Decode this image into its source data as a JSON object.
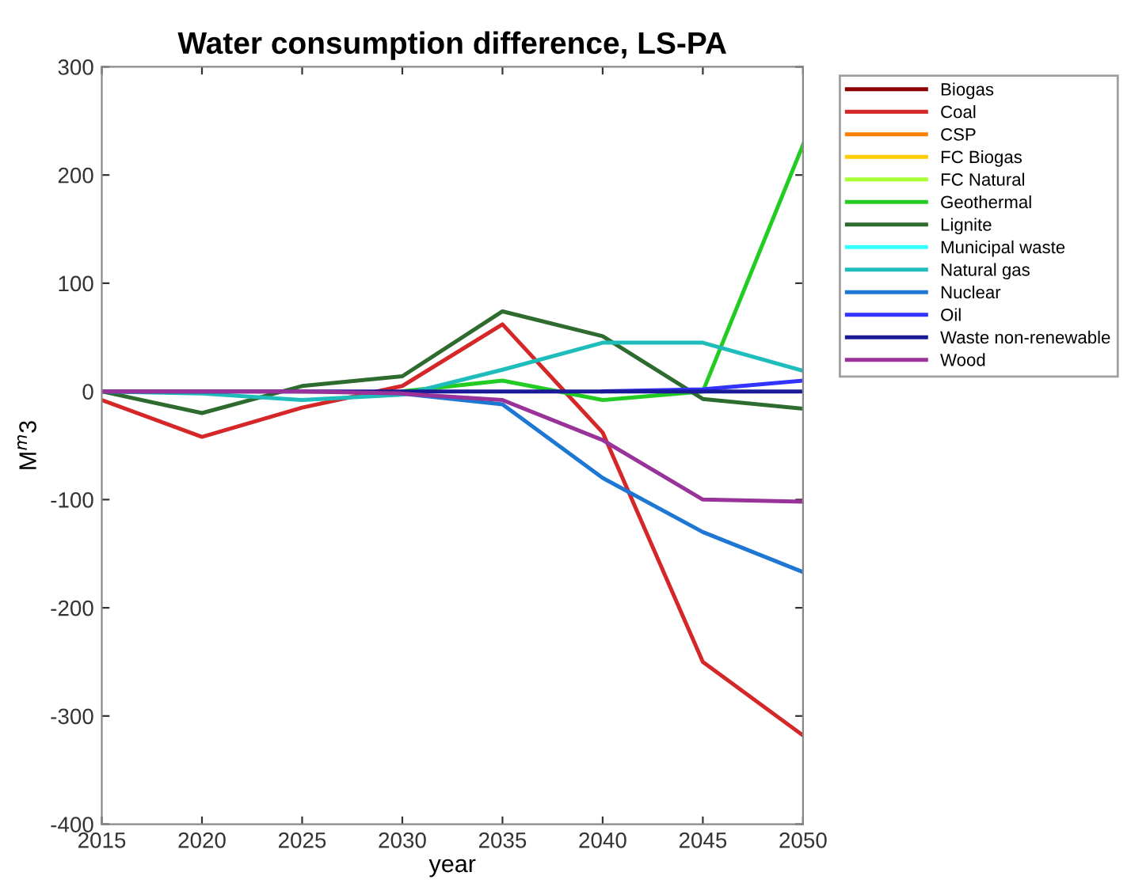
{
  "chart_data": {
    "type": "line",
    "title": "Water consumption difference, LS-PA",
    "xlabel": "year",
    "ylabel": "M$^{m}$3",
    "x": [
      2015,
      2020,
      2025,
      2030,
      2035,
      2040,
      2045,
      2050
    ],
    "xlim": [
      2015,
      2050
    ],
    "xticks": [
      2015,
      2020,
      2025,
      2030,
      2035,
      2040,
      2045,
      2050
    ],
    "ylim": [
      -400,
      300
    ],
    "yticks": [
      -400,
      -300,
      -200,
      -100,
      0,
      100,
      200,
      300
    ],
    "grid": false,
    "legend": "top right",
    "line_style": "solid",
    "marker": "none",
    "series": [
      {
        "name": "Biogas",
        "color": "#8b0000",
        "values": [
          null,
          null,
          null,
          null,
          null,
          null,
          null,
          null
        ]
      },
      {
        "name": "Coal",
        "color": "#d62728",
        "values": [
          -8,
          -42,
          -15,
          5,
          62,
          -38,
          -250,
          -318
        ]
      },
      {
        "name": "CSP",
        "color": "#ff7f00",
        "values": [
          null,
          null,
          null,
          null,
          null,
          null,
          null,
          null
        ]
      },
      {
        "name": "FC Biogas",
        "color": "#ffcc00",
        "values": [
          null,
          null,
          null,
          null,
          null,
          null,
          null,
          null
        ]
      },
      {
        "name": "FC Natural",
        "color": "#aaff33",
        "values": [
          null,
          null,
          null,
          null,
          null,
          null,
          null,
          null
        ]
      },
      {
        "name": "Geothermal",
        "color": "#22cc22",
        "values": [
          null,
          null,
          null,
          0,
          10,
          -8,
          0,
          228
        ]
      },
      {
        "name": "Lignite",
        "color": "#2e6b2e",
        "values": [
          0,
          -20,
          5,
          14,
          74,
          51,
          -7,
          -16
        ]
      },
      {
        "name": "Municipal waste",
        "color": "#33ffff",
        "values": [
          null,
          null,
          null,
          null,
          null,
          null,
          null,
          null
        ]
      },
      {
        "name": "Natural gas",
        "color": "#1fbcbc",
        "values": [
          0,
          -2,
          -8,
          -3,
          20,
          45,
          45,
          19
        ]
      },
      {
        "name": "Nuclear",
        "color": "#1f77d4",
        "values": [
          null,
          null,
          null,
          -2,
          -12,
          -80,
          -130,
          -167
        ]
      },
      {
        "name": "Oil",
        "color": "#3333ff",
        "values": [
          null,
          null,
          null,
          null,
          null,
          0,
          2,
          10
        ]
      },
      {
        "name": "Waste non-renewable",
        "color": "#1a1a99",
        "values": [
          0,
          0,
          0,
          0,
          0,
          0,
          0,
          0
        ]
      },
      {
        "name": "Wood",
        "color": "#993399",
        "values": [
          0,
          0,
          0,
          -2,
          -8,
          -45,
          -100,
          -102
        ]
      }
    ]
  }
}
